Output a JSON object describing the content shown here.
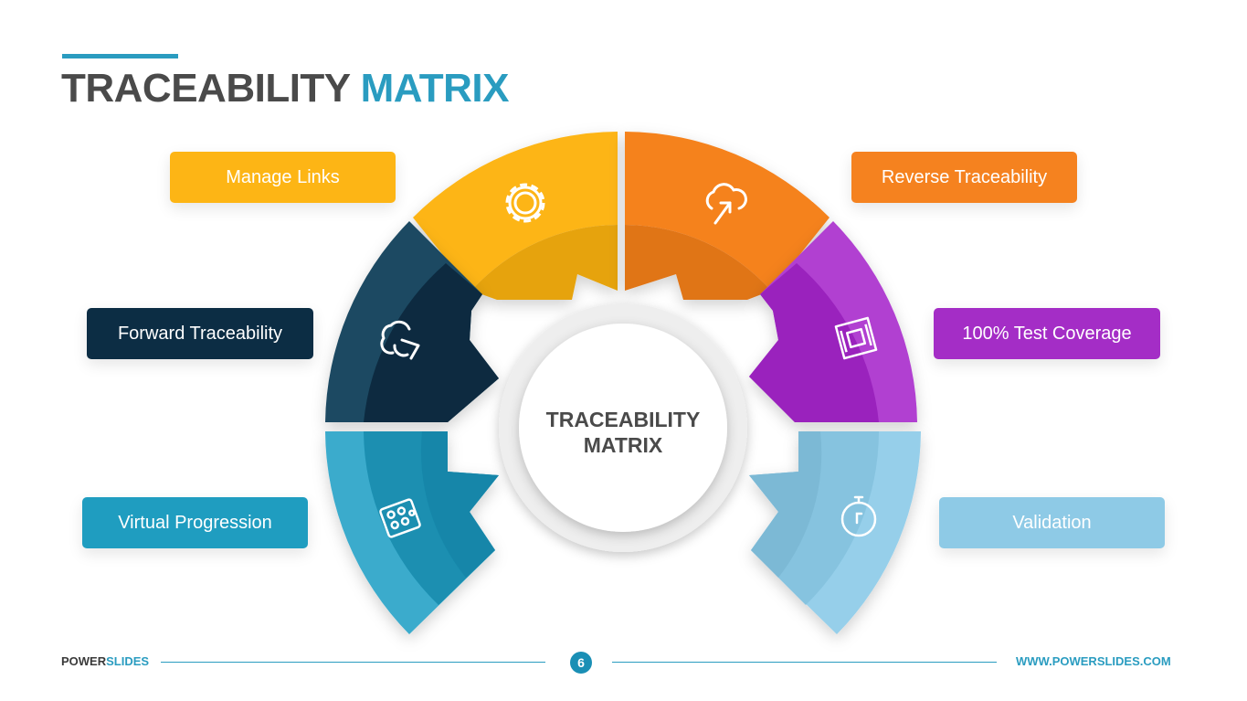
{
  "title": {
    "part1": "TRACEABILITY",
    "part2": "MATRIX"
  },
  "center": {
    "line1": "TRACEABILITY",
    "line2": "MATRIX"
  },
  "segments": [
    {
      "label": "Manage Links",
      "color": "#fdb515",
      "icon": "gear-icon"
    },
    {
      "label": "Reverse Traceability",
      "color": "#f5821f",
      "icon": "cloud-upload-icon"
    },
    {
      "label": "Forward Traceability",
      "color": "#0c2d44",
      "icon": "cloud-arrow-icon"
    },
    {
      "label": "100% Test Coverage",
      "color": "#a42dc6",
      "icon": "circuit-board-icon"
    },
    {
      "label": "Virtual Progression",
      "color": "#1f9dc0",
      "icon": "blister-pack-icon"
    },
    {
      "label": "Validation",
      "color": "#8ecae6",
      "icon": "timer-icon"
    }
  ],
  "footer": {
    "brand_part1": "POWER",
    "brand_part2": "SLIDES",
    "page": "6",
    "url": "WWW.POWERSLIDES.COM"
  }
}
